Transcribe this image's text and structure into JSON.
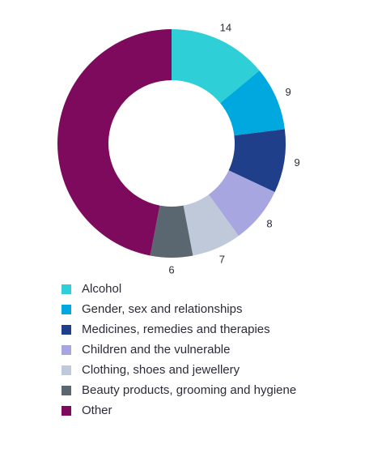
{
  "chart_data": {
    "type": "donut",
    "categories": [
      "Alcohol",
      "Gender, sex and relationships",
      "Medicines, remedies and therapies",
      "Children and the vulnerable",
      "Clothing, shoes and jewellery",
      "Beauty products, grooming and hygiene",
      "Other"
    ],
    "values": [
      14,
      9,
      9,
      8,
      7,
      6,
      47
    ],
    "value_labels": [
      "14",
      "9",
      "9",
      "8",
      "7",
      "6",
      null
    ],
    "colors": [
      "#2ecfd6",
      "#00a8e0",
      "#1f3f8a",
      "#a8a6e0",
      "#bfc9d9",
      "#5a6670",
      "#7d0a5c"
    ],
    "legend": "bottom"
  }
}
